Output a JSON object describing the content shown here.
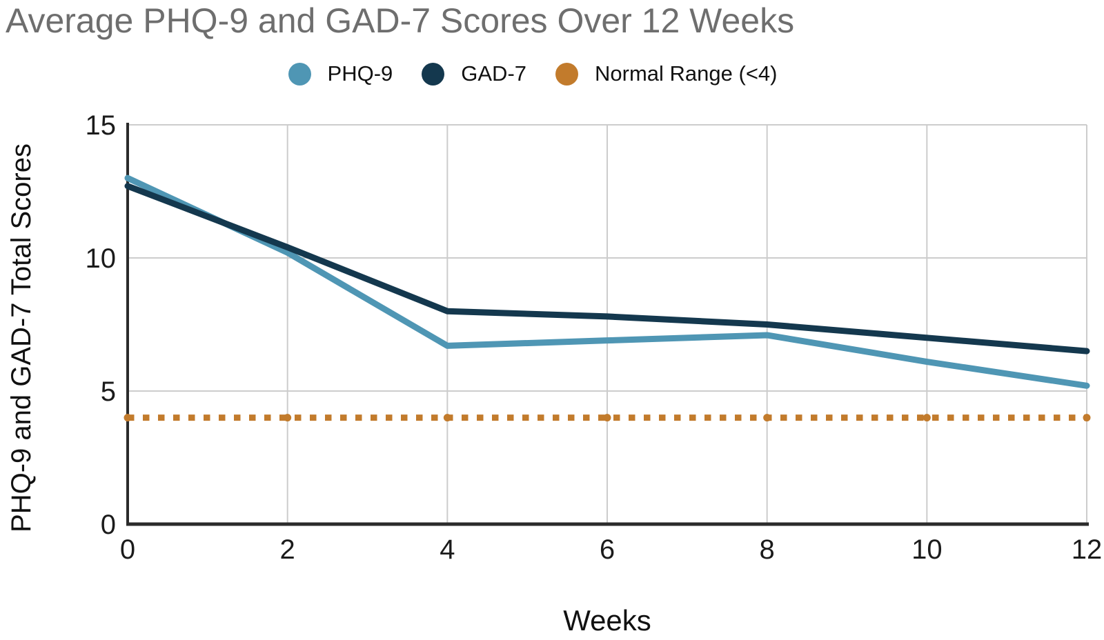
{
  "title": "Average PHQ-9 and GAD-7 Scores Over 12 Weeks",
  "legend": {
    "items": [
      {
        "label": "PHQ-9",
        "color": "#4f96b4"
      },
      {
        "label": "GAD-7",
        "color": "#14384e"
      },
      {
        "label": "Normal Range (<4)",
        "color": "#c27b2c"
      }
    ]
  },
  "axes": {
    "y_title": "PHQ-9 and GAD-7 Total Scores",
    "x_title": "Weeks",
    "y_ticks": [
      "0",
      "5",
      "10",
      "15"
    ],
    "x_ticks": [
      "0",
      "2",
      "4",
      "6",
      "8",
      "10",
      "12"
    ]
  },
  "colors": {
    "title_text": "#6e6e6e",
    "axis_line": "#2b2b2b",
    "grid_line": "#cccccc",
    "tick_text": "#1b1b1b",
    "axis_title_text": "#111111"
  },
  "chart_data": {
    "type": "line",
    "x": [
      0,
      2,
      4,
      6,
      8,
      10,
      12
    ],
    "xlabel": "Weeks",
    "ylabel": "PHQ-9 and GAD-7 Total Scores",
    "xlim": [
      0,
      12
    ],
    "ylim": [
      0,
      15
    ],
    "grid": true,
    "legend_position": "top",
    "title": "Average PHQ-9 and GAD-7 Scores Over 12 Weeks",
    "series": [
      {
        "name": "PHQ-9",
        "color": "#4f96b4",
        "style": "solid",
        "values": [
          13.0,
          10.2,
          6.7,
          6.9,
          7.1,
          6.1,
          5.2
        ]
      },
      {
        "name": "GAD-7",
        "color": "#14384e",
        "style": "solid",
        "values": [
          12.7,
          10.4,
          8.0,
          7.8,
          7.5,
          7.0,
          6.5
        ]
      },
      {
        "name": "Normal Range (<4)",
        "color": "#c27b2c",
        "style": "dotted",
        "values": [
          4,
          4,
          4,
          4,
          4,
          4,
          4
        ]
      }
    ]
  }
}
